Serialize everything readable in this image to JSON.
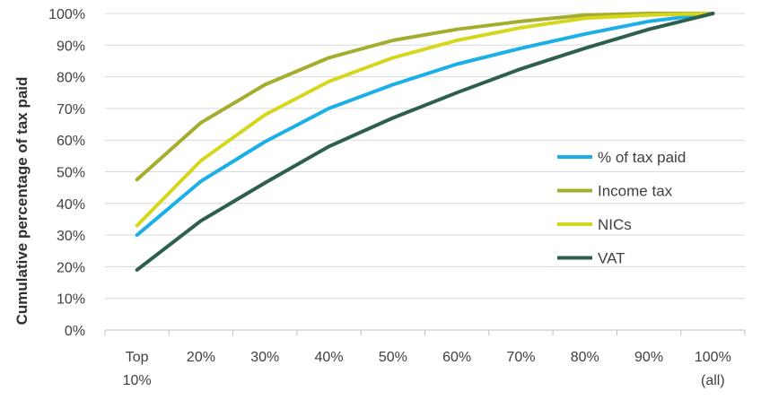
{
  "chart_data": {
    "type": "line",
    "title": "",
    "xlabel": "",
    "ylabel": "Cumulative percentage of tax paid",
    "categories": [
      "Top 10%",
      "20%",
      "30%",
      "40%",
      "50%",
      "60%",
      "70%",
      "80%",
      "90%",
      "100% (all)"
    ],
    "category_lines": [
      [
        "Top",
        "10%"
      ],
      [
        "20%"
      ],
      [
        "30%"
      ],
      [
        "40%"
      ],
      [
        "50%"
      ],
      [
        "60%"
      ],
      [
        "70%"
      ],
      [
        "80%"
      ],
      [
        "90%"
      ],
      [
        "100%",
        "(all)"
      ]
    ],
    "ylim": [
      0,
      100
    ],
    "yticks": [
      0,
      10,
      20,
      30,
      40,
      50,
      60,
      70,
      80,
      90,
      100
    ],
    "ytick_labels": [
      "0%",
      "10%",
      "20%",
      "30%",
      "40%",
      "50%",
      "60%",
      "70%",
      "80%",
      "90%",
      "100%"
    ],
    "grid": "horizontal",
    "legend_position": "right",
    "series": [
      {
        "name": "% of tax paid",
        "color": "#1aafe6",
        "values": [
          30,
          47,
          59.5,
          70,
          77.5,
          84,
          89,
          93.5,
          97.5,
          100
        ]
      },
      {
        "name": "Income tax",
        "color": "#a5ad2e",
        "values": [
          47.5,
          65.5,
          77.5,
          86,
          91.5,
          95,
          97.5,
          99.5,
          100,
          100
        ]
      },
      {
        "name": "NICs",
        "color": "#d6d71d",
        "values": [
          33,
          53.5,
          68,
          78.5,
          86,
          91.5,
          95.5,
          98.5,
          99.5,
          100
        ]
      },
      {
        "name": "VAT",
        "color": "#2e5e4e",
        "values": [
          19,
          34.5,
          46.5,
          58,
          67,
          75,
          82.5,
          89,
          95,
          100
        ]
      }
    ]
  }
}
